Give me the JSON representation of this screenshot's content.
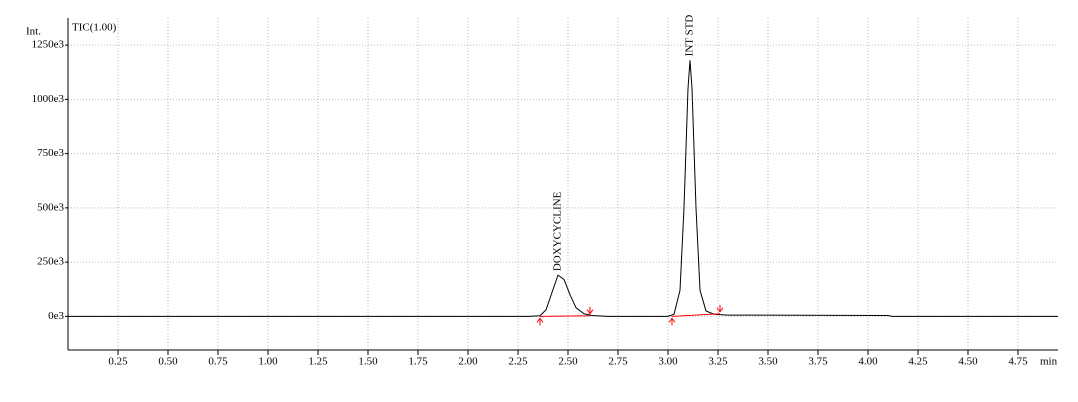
{
  "chart_data": {
    "type": "line",
    "y_label": "Int.",
    "trace_label": "TIC(1.00)",
    "x_unit": "min",
    "xlim": [
      0,
      4.95
    ],
    "ylim": [
      -155000,
      1375000
    ],
    "xticks": [
      {
        "value": 0.25,
        "label": "0.25"
      },
      {
        "value": 0.5,
        "label": "0.50"
      },
      {
        "value": 0.75,
        "label": "0.75"
      },
      {
        "value": 1,
        "label": "1.00"
      },
      {
        "value": 1.25,
        "label": "1.25"
      },
      {
        "value": 1.5,
        "label": "1.50"
      },
      {
        "value": 1.75,
        "label": "1.75"
      },
      {
        "value": 2,
        "label": "2.00"
      },
      {
        "value": 2.25,
        "label": "2.25"
      },
      {
        "value": 2.5,
        "label": "2.50"
      },
      {
        "value": 2.75,
        "label": "2.75"
      },
      {
        "value": 3,
        "label": "3.00"
      },
      {
        "value": 3.25,
        "label": "3.25"
      },
      {
        "value": 3.5,
        "label": "3.50"
      },
      {
        "value": 3.75,
        "label": "3.75"
      },
      {
        "value": 4,
        "label": "4.00"
      },
      {
        "value": 4.25,
        "label": "4.25"
      },
      {
        "value": 4.5,
        "label": "4.50"
      },
      {
        "value": 4.75,
        "label": "4.75"
      }
    ],
    "yticks": [
      {
        "value": 0,
        "label": "0e3"
      },
      {
        "value": 250000,
        "label": "250e3"
      },
      {
        "value": 500000,
        "label": "500e3"
      },
      {
        "value": 750000,
        "label": "750e3"
      },
      {
        "value": 1000000,
        "label": "1000e3"
      },
      {
        "value": 1250000,
        "label": "1250e3"
      }
    ],
    "grid": true,
    "x": [
      0,
      2.3,
      2.36,
      2.39,
      2.42,
      2.45,
      2.48,
      2.51,
      2.54,
      2.58,
      2.62,
      2.7,
      3.0,
      3.03,
      3.06,
      3.08,
      3.1,
      3.11,
      3.12,
      3.14,
      3.16,
      3.19,
      3.23,
      3.3,
      4.1,
      4.12,
      4.95
    ],
    "series": [
      {
        "color": "#000000",
        "values": [
          0,
          0,
          3000,
          30000,
          110000,
          190000,
          170000,
          100000,
          40000,
          12000,
          4000,
          0,
          0,
          10000,
          120000,
          500000,
          1050000,
          1180000,
          1050000,
          500000,
          120000,
          25000,
          10000,
          6000,
          4000,
          0,
          0
        ]
      }
    ],
    "baseline_color": "#ff0000",
    "integration_baselines": [
      {
        "x": [
          2.36,
          2.61
        ],
        "values": [
          0,
          3000
        ]
      },
      {
        "x": [
          3.02,
          3.26
        ],
        "values": [
          0,
          12000
        ]
      }
    ],
    "annotations": [
      {
        "text": "DOXYCYCLINE",
        "x": 2.45,
        "y": 190000
      },
      {
        "text": "INT STD",
        "x": 3.11,
        "y": 1180000
      }
    ]
  }
}
